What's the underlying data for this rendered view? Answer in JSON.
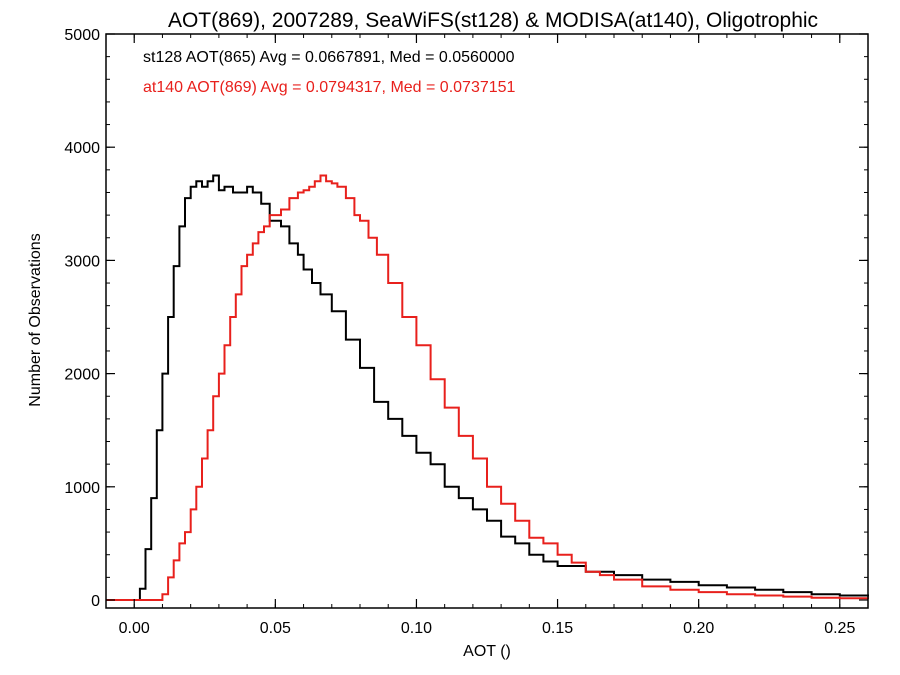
{
  "chart_data": {
    "type": "line",
    "title": "AOT(869), 2007289, SeaWiFS(st128) & MODISA(at140), Oligotrophic",
    "xlabel": "AOT ()",
    "ylabel": "Number of Observations",
    "xlim": [
      -0.01,
      0.26
    ],
    "ylim": [
      0,
      5000
    ],
    "x_ticks": [
      0.0,
      0.05,
      0.1,
      0.15,
      0.2,
      0.25
    ],
    "x_tick_labels": [
      "0.00",
      "0.05",
      "0.10",
      "0.15",
      "0.20",
      "0.25"
    ],
    "y_ticks": [
      0,
      1000,
      2000,
      3000,
      4000,
      5000
    ],
    "y_tick_labels": [
      "0",
      "1000",
      "2000",
      "3000",
      "4000",
      "5000"
    ],
    "grid": false,
    "legend_placement": "top-left",
    "series": [
      {
        "name": "st128 AOT(865) Avg = 0.0667891, Med = 0.0560000",
        "color": "#000000",
        "style": "step",
        "x": [
          -0.01,
          0.002,
          0.004,
          0.006,
          0.008,
          0.01,
          0.012,
          0.014,
          0.016,
          0.018,
          0.02,
          0.022,
          0.024,
          0.026,
          0.028,
          0.03,
          0.032,
          0.035,
          0.038,
          0.04,
          0.042,
          0.045,
          0.048,
          0.05,
          0.052,
          0.055,
          0.058,
          0.06,
          0.063,
          0.066,
          0.07,
          0.075,
          0.08,
          0.085,
          0.09,
          0.095,
          0.1,
          0.105,
          0.11,
          0.115,
          0.12,
          0.125,
          0.13,
          0.135,
          0.14,
          0.145,
          0.15,
          0.16,
          0.17,
          0.18,
          0.19,
          0.2,
          0.21,
          0.22,
          0.23,
          0.24,
          0.25,
          0.26
        ],
        "y": [
          0,
          100,
          450,
          900,
          1500,
          2000,
          2500,
          2950,
          3300,
          3550,
          3650,
          3700,
          3650,
          3700,
          3750,
          3620,
          3650,
          3600,
          3600,
          3650,
          3600,
          3500,
          3350,
          3350,
          3300,
          3150,
          3050,
          2920,
          2800,
          2700,
          2550,
          2300,
          2050,
          1750,
          1600,
          1450,
          1300,
          1200,
          1000,
          900,
          800,
          700,
          560,
          500,
          400,
          340,
          300,
          250,
          220,
          180,
          160,
          130,
          110,
          90,
          70,
          50,
          40,
          30
        ]
      },
      {
        "name": "at140 AOT(869) Avg = 0.0794317, Med = 0.0737151",
        "color": "#e8201c",
        "style": "step",
        "x": [
          -0.01,
          0.01,
          0.012,
          0.014,
          0.016,
          0.018,
          0.02,
          0.022,
          0.024,
          0.026,
          0.028,
          0.03,
          0.032,
          0.034,
          0.036,
          0.038,
          0.04,
          0.042,
          0.044,
          0.046,
          0.048,
          0.05,
          0.052,
          0.055,
          0.058,
          0.06,
          0.062,
          0.064,
          0.066,
          0.068,
          0.07,
          0.072,
          0.075,
          0.078,
          0.08,
          0.083,
          0.086,
          0.09,
          0.095,
          0.1,
          0.105,
          0.11,
          0.115,
          0.12,
          0.125,
          0.13,
          0.135,
          0.14,
          0.145,
          0.15,
          0.155,
          0.16,
          0.165,
          0.17,
          0.18,
          0.19,
          0.2,
          0.21,
          0.22,
          0.23,
          0.24,
          0.25,
          0.26
        ],
        "y": [
          0,
          50,
          200,
          350,
          500,
          600,
          800,
          1000,
          1250,
          1500,
          1800,
          2000,
          2250,
          2500,
          2700,
          2950,
          3050,
          3150,
          3250,
          3300,
          3400,
          3400,
          3450,
          3550,
          3600,
          3620,
          3650,
          3700,
          3750,
          3700,
          3680,
          3650,
          3550,
          3400,
          3350,
          3200,
          3050,
          2800,
          2500,
          2250,
          1950,
          1700,
          1450,
          1250,
          1000,
          850,
          700,
          550,
          500,
          400,
          330,
          250,
          220,
          180,
          120,
          90,
          70,
          50,
          40,
          30,
          20,
          15,
          10
        ]
      }
    ]
  }
}
